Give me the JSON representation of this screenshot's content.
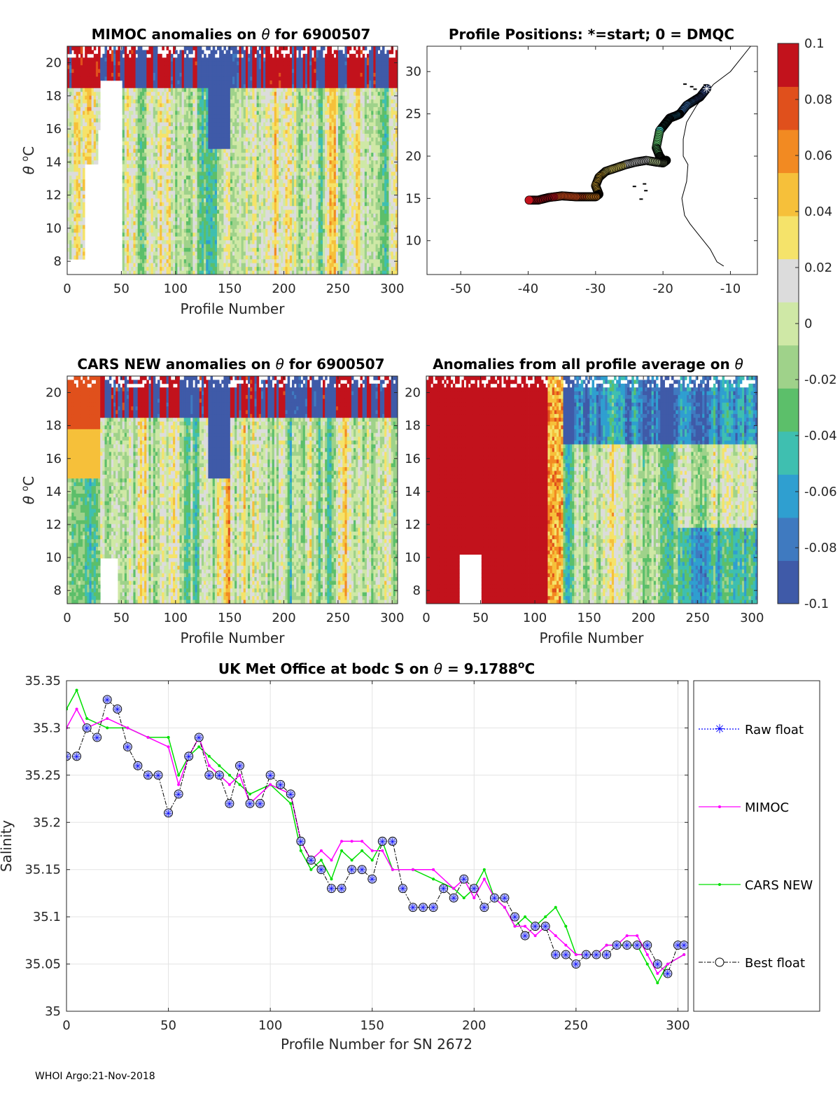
{
  "footer": "WHOI Argo:21-Nov-2018",
  "colorbar": {
    "min": -0.1,
    "max": 0.1,
    "tick_labels": [
      "0.1",
      "0.08",
      "0.06",
      "0.04",
      "0.02",
      "0",
      "-0.02",
      "-0.04",
      "-0.06",
      "-0.08",
      "-0.1"
    ],
    "colors": [
      "#3f5aa8",
      "#3f7ac0",
      "#2f9fd0",
      "#3fbfb0",
      "#5cbf6a",
      "#9fd28a",
      "#cfe8a6",
      "#dcdcdc",
      "#f5e36a",
      "#f6c03a",
      "#f28a22",
      "#e0501c",
      "#c2121c"
    ]
  },
  "chart_data": [
    {
      "type": "heatmap",
      "title_main": "MIMOC anomalies on",
      "title_var": "θ",
      "title_tail": " for 6900507",
      "xlabel": "Profile Number",
      "ylabel": "θ °C",
      "xlim": [
        0,
        305
      ],
      "ylim": [
        7.2,
        21
      ],
      "xticks": [
        "0",
        "50",
        "100",
        "150",
        "200",
        "250",
        "300"
      ],
      "yticks": [
        "8",
        "10",
        "12",
        "14",
        "16",
        "18",
        "20"
      ]
    },
    {
      "type": "scatter",
      "title": "Profile Positions: *=start; 0 = DMQC",
      "xlim": [
        -55,
        -6
      ],
      "ylim": [
        6,
        33
      ],
      "xticks": [
        "-50",
        "-40",
        "-30",
        "-20",
        "-10"
      ],
      "yticks": [
        "10",
        "15",
        "20",
        "25",
        "30"
      ],
      "track_lon": [
        -13.5,
        -14.5,
        -15.5,
        -16.5,
        -17.5,
        -18.0,
        -19.0,
        -19.5,
        -20.0,
        -20.5,
        -21.0,
        -20.5,
        -20.0,
        -19.5,
        -20.0,
        -21.0,
        -22.5,
        -24.0,
        -25.5,
        -27.0,
        -28.5,
        -29.5,
        -30.0,
        -29.5,
        -30.0,
        -31.5,
        -33.0,
        -35.0,
        -37.0,
        -38.5,
        -40.0
      ],
      "track_lat": [
        28.0,
        27.0,
        26.5,
        26.0,
        25.0,
        24.8,
        24.5,
        24.0,
        23.5,
        23.0,
        21.0,
        20.0,
        19.5,
        19.5,
        19.2,
        19.3,
        19.5,
        19.3,
        19.0,
        18.6,
        18.2,
        17.5,
        16.5,
        15.5,
        15.2,
        15.2,
        15.2,
        15.3,
        15.1,
        14.8,
        14.8
      ]
    },
    {
      "type": "heatmap",
      "title_main": "CARS NEW anomalies on",
      "title_var": "θ",
      "title_tail": " for 6900507",
      "xlabel": "Profile Number",
      "ylabel": "θ °C",
      "xlim": [
        0,
        305
      ],
      "ylim": [
        7.2,
        21
      ],
      "xticks": [
        "0",
        "50",
        "100",
        "150",
        "200",
        "250",
        "300"
      ],
      "yticks": [
        "8",
        "10",
        "12",
        "14",
        "16",
        "18",
        "20"
      ]
    },
    {
      "type": "heatmap",
      "title_main": "Anomalies from all profile average on",
      "title_var": "θ",
      "title_tail": "",
      "xlabel": "Profile Number",
      "xlim": [
        0,
        305
      ],
      "ylim": [
        7.2,
        21
      ],
      "xticks": [
        "0",
        "50",
        "100",
        "150",
        "200",
        "250",
        "300"
      ],
      "yticks": [
        "8",
        "10",
        "12",
        "14",
        "16",
        "18",
        "20"
      ]
    },
    {
      "type": "line",
      "title_main": "UK Met Office at bodc S on",
      "title_var": "θ",
      "title_tail": " = 9.1788",
      "title_sup": "o",
      "title_unit": "C",
      "xlabel": "Profile Number for SN 2672",
      "ylabel": "Salinity",
      "xlim": [
        0,
        305
      ],
      "ylim": [
        35,
        35.35
      ],
      "xticks": [
        "0",
        "50",
        "100",
        "150",
        "200",
        "250",
        "300"
      ],
      "yticks": [
        "35",
        "35.05",
        "35.1",
        "35.15",
        "35.2",
        "35.25",
        "35.3",
        "35.35"
      ],
      "grid": true,
      "legend": [
        "Raw float",
        "MIMOC",
        "CARS NEW",
        "Best float"
      ],
      "series": [
        {
          "name": "CARS NEW",
          "color": "#00e000",
          "x": [
            0,
            5,
            10,
            20,
            30,
            40,
            50,
            55,
            60,
            65,
            70,
            75,
            80,
            85,
            90,
            100,
            110,
            115,
            120,
            125,
            130,
            135,
            140,
            145,
            150,
            155,
            160,
            170,
            180,
            190,
            195,
            200,
            205,
            210,
            215,
            220,
            225,
            230,
            235,
            240,
            245,
            250,
            255,
            260,
            265,
            270,
            280,
            285,
            290,
            295,
            303
          ],
          "y": [
            35.32,
            35.34,
            35.31,
            35.3,
            35.3,
            35.29,
            35.29,
            35.25,
            35.27,
            35.28,
            35.27,
            35.26,
            35.25,
            35.24,
            35.23,
            35.24,
            35.22,
            35.17,
            35.15,
            35.16,
            35.14,
            35.17,
            35.16,
            35.17,
            35.16,
            35.18,
            35.15,
            35.15,
            35.14,
            35.13,
            35.12,
            35.13,
            35.15,
            35.12,
            35.11,
            35.09,
            35.1,
            35.09,
            35.1,
            35.11,
            35.09,
            35.06,
            35.06,
            35.06,
            35.07,
            35.07,
            35.07,
            35.05,
            35.03,
            35.05,
            35.06
          ]
        },
        {
          "name": "MIMOC",
          "color": "#ff00ff",
          "x": [
            0,
            5,
            10,
            20,
            30,
            40,
            50,
            55,
            60,
            65,
            70,
            75,
            80,
            85,
            90,
            100,
            110,
            115,
            120,
            125,
            130,
            135,
            140,
            145,
            150,
            155,
            160,
            170,
            180,
            190,
            195,
            200,
            205,
            210,
            215,
            220,
            225,
            230,
            235,
            240,
            245,
            250,
            255,
            260,
            265,
            270,
            275,
            280,
            285,
            290,
            295,
            303
          ],
          "y": [
            35.3,
            35.32,
            35.3,
            35.31,
            35.3,
            35.29,
            35.28,
            35.24,
            35.27,
            35.29,
            35.26,
            35.25,
            35.24,
            35.25,
            35.22,
            35.24,
            35.23,
            35.18,
            35.16,
            35.17,
            35.16,
            35.18,
            35.18,
            35.18,
            35.17,
            35.17,
            35.15,
            35.15,
            35.15,
            35.13,
            35.14,
            35.12,
            35.14,
            35.12,
            35.11,
            35.09,
            35.09,
            35.08,
            35.09,
            35.08,
            35.07,
            35.06,
            35.06,
            35.06,
            35.07,
            35.07,
            35.08,
            35.08,
            35.06,
            35.04,
            35.05,
            35.06
          ]
        },
        {
          "name": "Best float",
          "color": "#000000",
          "x": [
            0,
            5,
            10,
            15,
            20,
            25,
            30,
            35,
            40,
            45,
            50,
            55,
            60,
            65,
            70,
            75,
            80,
            85,
            90,
            95,
            100,
            105,
            110,
            115,
            120,
            125,
            130,
            135,
            140,
            145,
            150,
            155,
            160,
            165,
            170,
            175,
            180,
            185,
            190,
            195,
            200,
            205,
            210,
            215,
            220,
            225,
            230,
            235,
            240,
            245,
            250,
            255,
            260,
            265,
            270,
            275,
            280,
            285,
            290,
            295,
            300,
            303
          ],
          "y": [
            35.27,
            35.27,
            35.3,
            35.29,
            35.33,
            35.32,
            35.28,
            35.26,
            35.25,
            35.25,
            35.21,
            35.23,
            35.27,
            35.29,
            35.25,
            35.25,
            35.22,
            35.26,
            35.22,
            35.22,
            35.25,
            35.24,
            35.23,
            35.18,
            35.16,
            35.15,
            35.13,
            35.13,
            35.15,
            35.15,
            35.14,
            35.18,
            35.18,
            35.13,
            35.11,
            35.11,
            35.11,
            35.13,
            35.12,
            35.14,
            35.13,
            35.11,
            35.12,
            35.12,
            35.1,
            35.08,
            35.09,
            35.09,
            35.06,
            35.06,
            35.05,
            35.06,
            35.06,
            35.06,
            35.07,
            35.07,
            35.07,
            35.07,
            35.05,
            35.04,
            35.07,
            35.07
          ]
        }
      ]
    }
  ]
}
